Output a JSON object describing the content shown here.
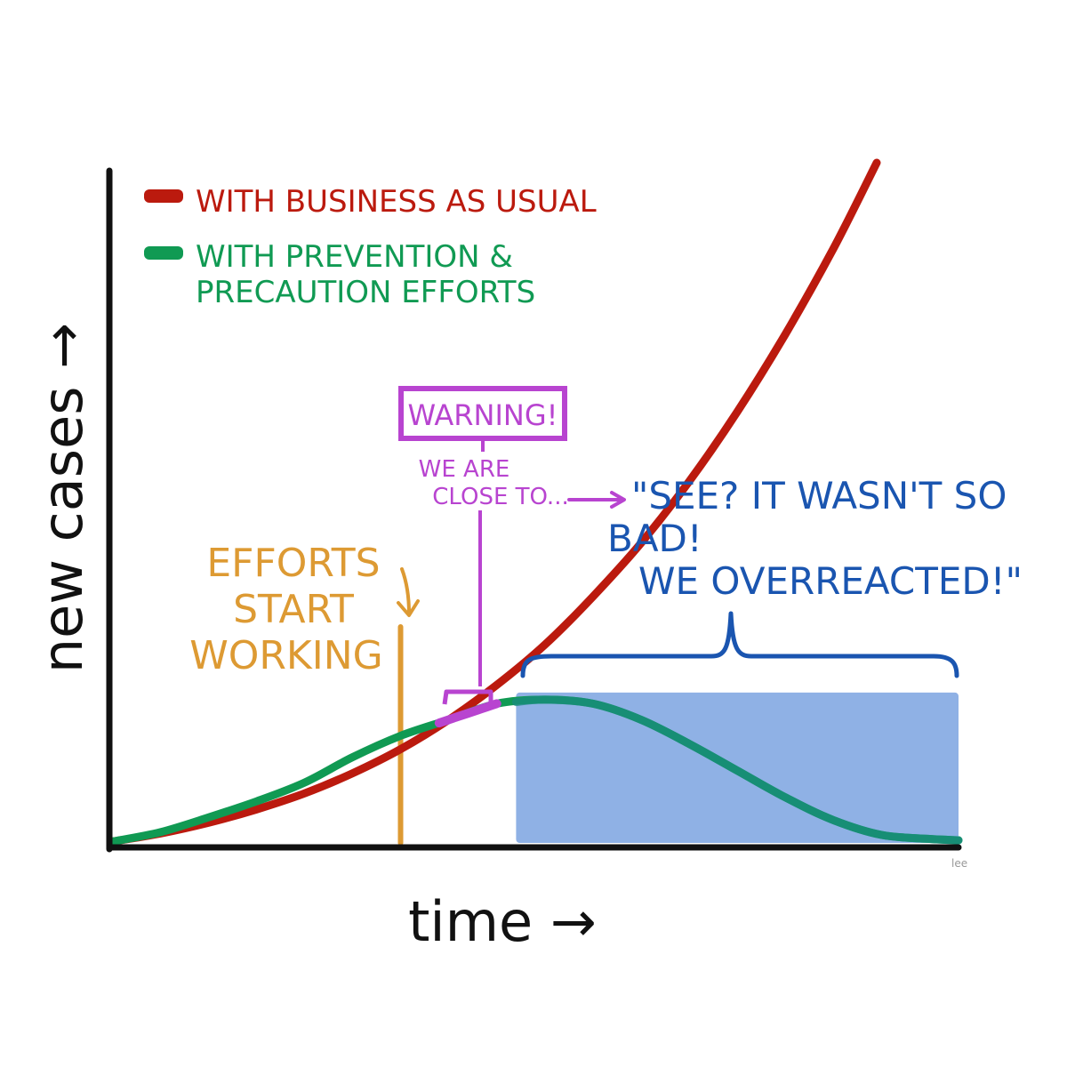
{
  "chart_data": {
    "type": "line",
    "xlabel": "time →",
    "ylabel": "new cases →",
    "grid": false,
    "legend_position": "top-left",
    "series": [
      {
        "name": "WITH BUSINESS AS USUAL",
        "color": "#bb1a0e",
        "points": [
          [
            0.0,
            0.5
          ],
          [
            5.0,
            3.5
          ],
          [
            10.0,
            7.5
          ],
          [
            15.0,
            12.5
          ],
          [
            20.0,
            18.5
          ],
          [
            25.0,
            26.0
          ],
          [
            30.0,
            35.0
          ],
          [
            35.0,
            46.0
          ],
          [
            40.0,
            59.0
          ],
          [
            45.0,
            74.0
          ],
          [
            50.0,
            92.0
          ],
          [
            55.0,
            112.0
          ],
          [
            60.0,
            135.0
          ],
          [
            65.0,
            161.0
          ],
          [
            70.0,
            190.0
          ],
          [
            75.0,
            222.0
          ],
          [
            79.5,
            254.0
          ]
        ]
      },
      {
        "name": "WITH PREVENTION & PRECAUTION EFFORTS",
        "color": "#109a53",
        "points": [
          [
            0.0,
            0.5
          ],
          [
            5.0,
            4.0
          ],
          [
            10.0,
            9.5
          ],
          [
            15.0,
            15.5
          ],
          [
            20.0,
            22.5
          ],
          [
            25.0,
            32.0
          ],
          [
            30.0,
            40.0
          ],
          [
            35.0,
            46.0
          ],
          [
            40.0,
            52.0
          ],
          [
            45.0,
            53.5
          ],
          [
            50.0,
            52.0
          ],
          [
            55.0,
            46.0
          ],
          [
            60.0,
            37.0
          ],
          [
            65.0,
            27.0
          ],
          [
            70.0,
            17.0
          ],
          [
            75.0,
            8.5
          ],
          [
            80.0,
            3.0
          ],
          [
            85.0,
            1.5
          ],
          [
            88.0,
            1.0
          ]
        ]
      }
    ],
    "annotations": {
      "efforts": {
        "lines": [
          "EFFORTS",
          "START",
          "WORKING"
        ],
        "color": "#dd9a33",
        "x": 30.0
      },
      "warning": {
        "box": "WARNING!",
        "note_lines": [
          "WE ARE",
          "CLOSE TO..."
        ],
        "color": "#b844d0",
        "x_range": [
          34.0,
          40.0
        ]
      },
      "quote": {
        "lines": [
          "\"SEE? IT WASN'T SO",
          "BAD!",
          "WE OVERREACTED!\""
        ],
        "color": "#1a55b0",
        "shaded_x_range": [
          42.0,
          88.0
        ],
        "shaded_color": "#7ba3e0"
      },
      "signature": "lee"
    }
  }
}
